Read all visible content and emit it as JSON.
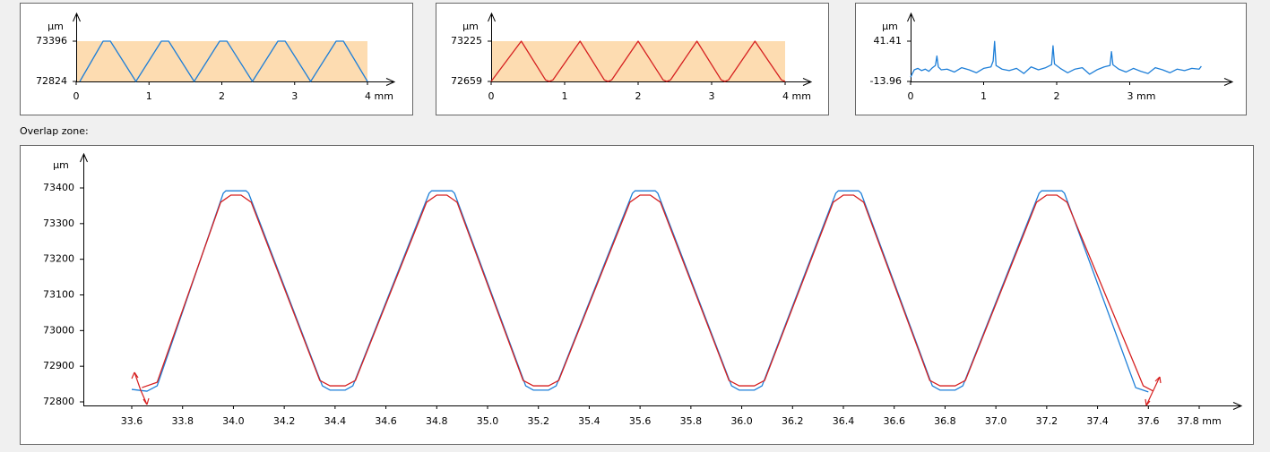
{
  "chart_data": [
    {
      "type": "line",
      "y_label": "µm",
      "band_color": "#fddcb1",
      "xlim": [
        0,
        4
      ],
      "ylim": [
        72824,
        73396
      ],
      "xticks": [
        0,
        1,
        2,
        3,
        {
          "value": 4,
          "label": "4 mm"
        }
      ],
      "yticks": [
        72824,
        73396
      ],
      "series": [
        {
          "color": "#1e7fd8",
          "x": [
            0.05,
            0.37,
            0.47,
            0.82,
            1.17,
            1.27,
            1.62,
            1.97,
            2.07,
            2.42,
            2.77,
            2.87,
            3.22,
            3.57,
            3.67,
            4.0
          ],
          "values": [
            72824,
            73396,
            73396,
            72824,
            73396,
            73396,
            72824,
            73396,
            73396,
            72824,
            73396,
            73396,
            72824,
            73396,
            73396,
            72824
          ]
        }
      ]
    },
    {
      "type": "line",
      "y_label": "µm",
      "band_color": "#fddcb1",
      "xlim": [
        0,
        4
      ],
      "ylim": [
        72659,
        73225
      ],
      "xticks": [
        0,
        1,
        2,
        3,
        {
          "value": 4,
          "label": "4 mm"
        }
      ],
      "yticks": [
        72659,
        73225
      ],
      "series": [
        {
          "color": "#d62020",
          "x": [
            0.0,
            0.41,
            0.74,
            0.79,
            0.84,
            1.21,
            1.54,
            1.59,
            1.64,
            2.0,
            2.34,
            2.39,
            2.44,
            2.8,
            3.13,
            3.18,
            3.23,
            3.59,
            3.95,
            4.0
          ],
          "values": [
            72659,
            73225,
            72680,
            72659,
            72680,
            73225,
            72680,
            72659,
            72680,
            73225,
            72680,
            72659,
            72680,
            73225,
            72680,
            72659,
            72680,
            73225,
            72680,
            72659
          ]
        }
      ]
    },
    {
      "type": "line",
      "y_label": "µm",
      "xlim": [
        0,
        4
      ],
      "ylim": [
        -13.96,
        41.41
      ],
      "xticks": [
        0,
        1,
        2,
        {
          "value": 3,
          "label": "3 mm"
        }
      ],
      "yticks": [
        -13.96,
        41.41
      ],
      "series": [
        {
          "color": "#1e7fd8",
          "x": [
            0,
            0.05,
            0.1,
            0.15,
            0.2,
            0.25,
            0.3,
            0.34,
            0.36,
            0.38,
            0.42,
            0.5,
            0.6,
            0.7,
            0.8,
            0.9,
            1.0,
            1.1,
            1.13,
            1.15,
            1.17,
            1.25,
            1.35,
            1.45,
            1.55,
            1.65,
            1.75,
            1.85,
            1.93,
            1.95,
            1.97,
            2.05,
            2.15,
            2.25,
            2.35,
            2.45,
            2.55,
            2.65,
            2.73,
            2.75,
            2.77,
            2.85,
            2.95,
            3.05,
            3.15,
            3.25,
            3.35,
            3.45,
            3.55,
            3.65,
            3.75,
            3.85,
            3.95,
            3.98
          ],
          "values": [
            -8,
            2,
            4,
            1,
            3,
            0,
            5,
            8,
            21,
            6,
            2,
            3,
            -1,
            5,
            2,
            -2,
            4,
            6,
            14,
            41,
            8,
            3,
            1,
            4,
            -3,
            6,
            2,
            5,
            9,
            35,
            10,
            4,
            -2,
            3,
            5,
            -4,
            2,
            6,
            8,
            27,
            9,
            3,
            -1,
            4,
            0,
            -3,
            5,
            2,
            -2,
            3,
            1,
            4,
            3,
            7
          ]
        }
      ]
    },
    {
      "type": "line",
      "title": "Overlap zone:",
      "y_label": "µm",
      "xlim": [
        33.6,
        37.8
      ],
      "ylim": [
        72800,
        73400
      ],
      "xticks": [
        33.6,
        33.8,
        {
          "value": 34,
          "label": "34.0"
        },
        34.2,
        34.4,
        34.6,
        34.8,
        {
          "value": 35,
          "label": "35.0"
        },
        35.2,
        35.4,
        35.6,
        35.8,
        {
          "value": 36,
          "label": "36.0"
        },
        36.2,
        36.4,
        36.6,
        36.8,
        {
          "value": 37,
          "label": "37.0"
        },
        37.2,
        37.4,
        37.6,
        {
          "value": 37.8,
          "label": "37.8 mm"
        }
      ],
      "yticks": [
        72800,
        72900,
        73000,
        73100,
        73200,
        73300,
        73400
      ],
      "series": [
        {
          "color": "#1e7fd8",
          "x": [
            33.6,
            33.66,
            33.7,
            33.96,
            33.97,
            34.05,
            34.06,
            34.35,
            34.38,
            34.44,
            34.47,
            34.77,
            34.78,
            34.86,
            34.87,
            35.15,
            35.18,
            35.24,
            35.27,
            35.57,
            35.58,
            35.66,
            35.67,
            35.96,
            35.99,
            36.05,
            36.08,
            36.37,
            36.38,
            36.46,
            36.47,
            36.75,
            36.78,
            36.84,
            36.87,
            37.17,
            37.18,
            37.26,
            37.27,
            37.55,
            37.6
          ],
          "values": [
            72835,
            72830,
            72845,
            73385,
            73392,
            73392,
            73385,
            72845,
            72833,
            72833,
            72845,
            73385,
            73392,
            73392,
            73385,
            72845,
            72833,
            72833,
            72845,
            73385,
            73392,
            73392,
            73385,
            72845,
            72833,
            72833,
            72845,
            73385,
            73392,
            73392,
            73385,
            72845,
            72833,
            72833,
            72845,
            73385,
            73392,
            73392,
            73385,
            72840,
            72828
          ]
        },
        {
          "color": "#d62020",
          "x": [
            33.64,
            33.7,
            33.95,
            33.99,
            34.03,
            34.07,
            34.34,
            34.38,
            34.44,
            34.48,
            34.76,
            34.8,
            34.84,
            34.88,
            35.14,
            35.18,
            35.24,
            35.28,
            35.56,
            35.6,
            35.64,
            35.68,
            35.95,
            35.99,
            36.05,
            36.09,
            36.36,
            36.4,
            36.44,
            36.48,
            36.74,
            36.78,
            36.84,
            36.88,
            37.16,
            37.2,
            37.24,
            37.28,
            37.58,
            37.62
          ],
          "values": [
            72840,
            72855,
            73360,
            73380,
            73380,
            73360,
            72860,
            72845,
            72845,
            72860,
            73360,
            73380,
            73380,
            73360,
            72860,
            72845,
            72845,
            72860,
            73360,
            73380,
            73380,
            73360,
            72860,
            72845,
            72845,
            72860,
            73360,
            73380,
            73380,
            73360,
            72860,
            72845,
            72845,
            72860,
            73360,
            73380,
            73380,
            73360,
            72845,
            72830
          ]
        }
      ]
    }
  ]
}
